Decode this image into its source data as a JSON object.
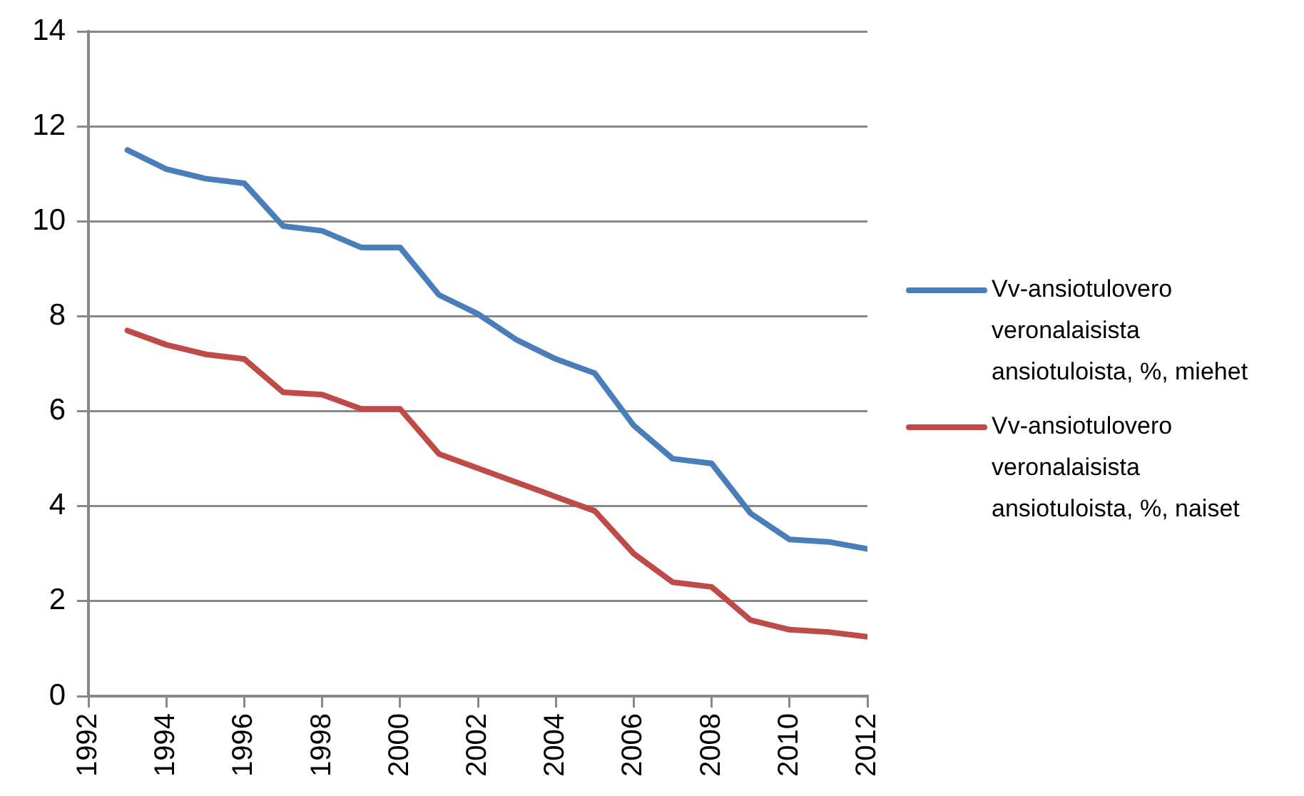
{
  "chart_data": {
    "type": "line",
    "x": [
      1993,
      1994,
      1995,
      1996,
      1997,
      1998,
      1999,
      2000,
      2001,
      2002,
      2003,
      2004,
      2005,
      2006,
      2007,
      2008,
      2009,
      2010,
      2011,
      2012
    ],
    "series": [
      {
        "name": "Vv-ansiotulovero veronalaisista ansiotuloista, %, miehet",
        "color": "#4a7ebb",
        "values": [
          11.5,
          11.1,
          10.9,
          10.8,
          9.9,
          9.8,
          9.45,
          9.45,
          8.45,
          8.05,
          7.5,
          7.1,
          6.8,
          5.7,
          5.0,
          4.9,
          3.85,
          3.3,
          3.25,
          3.1
        ]
      },
      {
        "name": "Vv-ansiotulovero veronalaisista ansiotuloista, %, naiset",
        "color": "#be4b48",
        "values": [
          7.7,
          7.4,
          7.2,
          7.1,
          6.4,
          6.35,
          6.05,
          6.05,
          5.1,
          4.8,
          4.5,
          4.2,
          3.9,
          3.0,
          2.4,
          2.3,
          1.6,
          1.4,
          1.35,
          1.25
        ]
      }
    ],
    "xlim": [
      1992,
      2012
    ],
    "xticks": [
      1992,
      1994,
      1996,
      1998,
      2000,
      2002,
      2004,
      2006,
      2008,
      2010,
      2012
    ],
    "ylim": [
      0,
      14
    ],
    "yticks": [
      0,
      2,
      4,
      6,
      8,
      10,
      12,
      14
    ],
    "grid": "y",
    "legend": "right"
  }
}
